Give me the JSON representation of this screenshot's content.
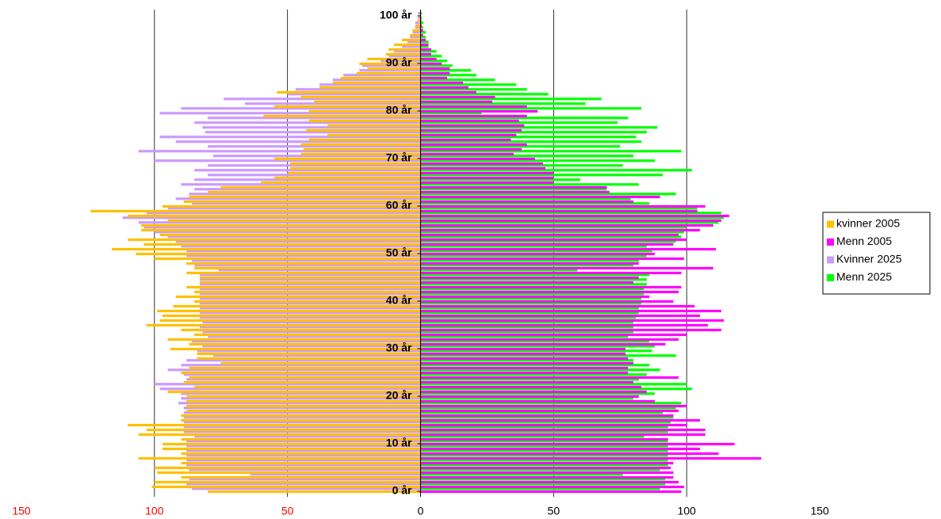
{
  "chart_data": {
    "type": "population-pyramid",
    "categories": [
      "0 år",
      null,
      null,
      null,
      null,
      null,
      null,
      null,
      null,
      null,
      "10 år",
      null,
      null,
      null,
      null,
      null,
      null,
      null,
      null,
      null,
      "20 år",
      null,
      null,
      null,
      null,
      null,
      null,
      null,
      null,
      null,
      "30 år",
      null,
      null,
      null,
      null,
      null,
      null,
      null,
      null,
      null,
      "40 år",
      null,
      null,
      null,
      null,
      null,
      null,
      null,
      null,
      null,
      "50 år",
      null,
      null,
      null,
      null,
      null,
      null,
      null,
      null,
      null,
      "60 år",
      null,
      null,
      null,
      null,
      null,
      null,
      null,
      null,
      null,
      "70 år",
      null,
      null,
      null,
      null,
      null,
      null,
      null,
      null,
      null,
      "80 år",
      null,
      null,
      null,
      null,
      null,
      null,
      null,
      null,
      null,
      "90 år",
      null,
      null,
      null,
      null,
      null,
      null,
      null,
      null,
      null,
      "100 år"
    ],
    "series": [
      {
        "name": "kvinner 2005",
        "color": "#ffc000",
        "values": [
          -80,
          -101,
          -100,
          -90,
          -99,
          -100,
          -90,
          -106,
          -90,
          -97,
          -97,
          -90,
          -106,
          -103,
          -110,
          -90,
          -90,
          -88,
          -88,
          -88,
          -88,
          -95,
          -85,
          -89,
          -87,
          -90,
          -87,
          -75,
          -84,
          -84,
          -94,
          -87,
          -95,
          -85,
          -90,
          -103,
          -98,
          -97,
          -99,
          -93,
          -85,
          -92,
          -85,
          -88,
          -83,
          -83,
          -88,
          -85,
          -88,
          -100,
          -107,
          -116,
          -104,
          -110,
          -98,
          -105,
          -105,
          -95,
          -110,
          -124,
          -97,
          -89,
          -87,
          -80,
          -75,
          -60,
          -55,
          -50,
          -49,
          -49,
          -55,
          -45,
          -44,
          -45,
          -42,
          -35,
          -43,
          -35,
          -42,
          -59,
          -42,
          -55,
          -40,
          -45,
          -54,
          -38,
          -33,
          -30,
          -24,
          -20,
          -23,
          -20,
          -13,
          -12,
          -10,
          -7,
          -4,
          -3,
          -2,
          -1,
          -0.5
        ]
      },
      {
        "name": "Menn 2005",
        "color": "#ff00ff",
        "values": [
          98,
          99,
          97,
          95,
          95,
          94,
          95,
          128,
          112,
          105,
          118,
          93,
          107,
          107,
          100,
          105,
          95,
          97,
          100,
          88,
          82,
          85,
          83,
          80,
          97,
          78,
          78,
          80,
          78,
          77,
          77,
          92,
          97,
          100,
          113,
          108,
          114,
          105,
          113,
          103,
          95,
          86,
          97,
          98,
          80,
          82,
          98,
          110,
          82,
          99,
          88,
          111,
          95,
          100,
          97,
          105,
          110,
          113,
          116,
          104,
          107,
          80,
          90,
          71,
          70,
          50,
          50,
          50,
          47,
          46,
          43,
          35,
          38,
          40,
          34,
          36,
          38,
          39,
          37,
          40,
          44,
          40,
          27,
          28,
          21,
          18,
          16,
          10,
          11,
          11,
          8,
          6,
          4,
          4,
          3,
          2,
          1,
          1,
          0.5,
          0.3,
          0.2
        ]
      },
      {
        "name": "Kvinner 2025",
        "color": "#cc99ff",
        "values": [
          -86,
          -88,
          -87,
          -64,
          -87,
          -88,
          -88,
          -88,
          -88,
          -88,
          -88,
          -85,
          -89,
          -89,
          -89,
          -89,
          -89,
          -89,
          -91,
          -90,
          -90,
          -98,
          -100,
          -88,
          -89,
          -95,
          -90,
          -88,
          -78,
          -84,
          -82,
          -86,
          -80,
          -82,
          -83,
          -82,
          -83,
          -83,
          -83,
          -83,
          -83,
          -83,
          -83,
          -83,
          -83,
          -83,
          -76,
          -85,
          -86,
          -88,
          -88,
          -90,
          -92,
          -95,
          -100,
          -104,
          -106,
          -112,
          -103,
          -95,
          -86,
          -92,
          -87,
          -85,
          -90,
          -85,
          -80,
          -85,
          -80,
          -100,
          -78,
          -106,
          -80,
          -92,
          -98,
          -81,
          -82,
          -85,
          -80,
          -98,
          -90,
          -66,
          -74,
          -50,
          -47,
          -38,
          -33,
          -29,
          -23,
          -22,
          -15,
          -12,
          -10,
          -7,
          -5,
          -4,
          -3,
          -2,
          -2,
          -1,
          -1
        ]
      },
      {
        "name": "Menn 2025",
        "color": "#00ff00",
        "values": [
          90,
          92,
          92,
          76,
          90,
          93,
          93,
          93,
          93,
          93,
          93,
          84,
          93,
          93,
          94,
          95,
          91,
          96,
          98,
          80,
          88,
          102,
          100,
          82,
          85,
          90,
          86,
          80,
          96,
          87,
          88,
          86,
          78,
          80,
          80,
          80,
          81,
          82,
          82,
          83,
          83,
          84,
          84,
          85,
          85,
          86,
          59,
          80,
          82,
          85,
          87,
          85,
          96,
          98,
          99,
          100,
          112,
          114,
          113,
          104,
          86,
          79,
          96,
          70,
          82,
          60,
          91,
          102,
          76,
          88,
          80,
          98,
          75,
          83,
          81,
          85,
          89,
          74,
          78,
          23,
          83,
          62,
          68,
          48,
          40,
          36,
          28,
          21,
          19,
          12,
          10,
          8,
          6,
          3,
          3,
          2,
          2,
          1,
          1,
          0.5,
          0.5
        ]
      }
    ],
    "xlim": [
      -150,
      150
    ],
    "xticks": [
      {
        "value": -150,
        "label": "150"
      },
      {
        "value": -100,
        "label": "100"
      },
      {
        "value": -50,
        "label": "50"
      },
      0,
      50,
      100,
      150
    ],
    "xtick_label_colors": [
      "#ff0000",
      "#ff0000",
      "#ff0000",
      "#000000",
      "#000000",
      "#000000",
      "#000000"
    ],
    "grid": true,
    "legend": "right"
  }
}
